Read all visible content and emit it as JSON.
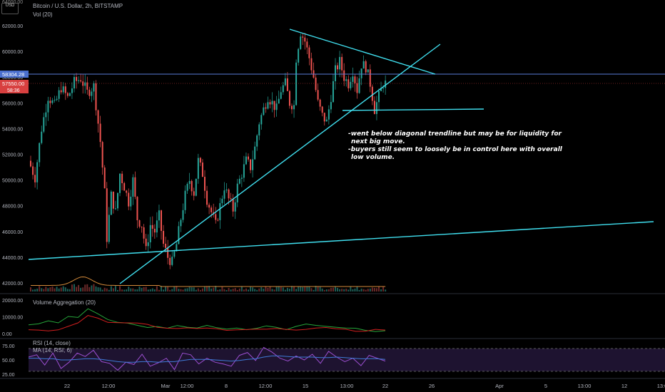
{
  "header": {
    "symbol_line": "Bitcoin / U.S. Dollar, 2h, BITSTAMP",
    "vol_label": "Vol (20)",
    "currency_top": "64000.00",
    "currency_badge": "USD"
  },
  "chart_data": [
    {
      "type": "candlestick",
      "title": "Bitcoin / U.S. Dollar, 2h, BITSTAMP",
      "y_ticks": [
        "62000.00",
        "60000.00",
        "58000.00",
        "56000.00",
        "54000.00",
        "52000.00",
        "50000.00",
        "48000.00",
        "46000.00",
        "44000.00",
        "42000.00"
      ],
      "ylim": [
        41500,
        64000
      ],
      "x_ticks": [
        "22",
        "12:00",
        "Mar",
        "12:00",
        "8",
        "12:00",
        "15",
        "13:00",
        "22",
        "26",
        "Apr",
        "5",
        "13:00",
        "12",
        "13:0"
      ],
      "price_path": [
        [
          0,
          51500
        ],
        [
          3,
          50200
        ],
        [
          6,
          54000
        ],
        [
          9,
          56500
        ],
        [
          12,
          55800
        ],
        [
          15,
          57200
        ],
        [
          18,
          56400
        ],
        [
          21,
          57600
        ],
        [
          24,
          57900
        ],
        [
          27,
          56800
        ],
        [
          30,
          57300
        ],
        [
          33,
          53000
        ],
        [
          35,
          49000
        ],
        [
          36,
          45500
        ],
        [
          38,
          48800
        ],
        [
          40,
          47500
        ],
        [
          42,
          50500
        ],
        [
          44,
          49500
        ],
        [
          46,
          48300
        ],
        [
          48,
          50000
        ],
        [
          50,
          47000
        ],
        [
          52,
          46500
        ],
        [
          54,
          44500
        ],
        [
          56,
          46500
        ],
        [
          58,
          46000
        ],
        [
          60,
          47200
        ],
        [
          62,
          45000
        ],
        [
          64,
          44000
        ],
        [
          66,
          43600
        ],
        [
          68,
          45000
        ],
        [
          70,
          47000
        ],
        [
          72,
          48800
        ],
        [
          74,
          50000
        ],
        [
          76,
          49000
        ],
        [
          78,
          51500
        ],
        [
          80,
          50500
        ],
        [
          82,
          48500
        ],
        [
          84,
          47500
        ],
        [
          86,
          46500
        ],
        [
          88,
          48000
        ],
        [
          90,
          49500
        ],
        [
          92,
          48500
        ],
        [
          94,
          47700
        ],
        [
          96,
          49500
        ],
        [
          98,
          50500
        ],
        [
          100,
          51500
        ],
        [
          102,
          51000
        ],
        [
          104,
          52500
        ],
        [
          106,
          54500
        ],
        [
          108,
          55500
        ],
        [
          110,
          56500
        ],
        [
          112,
          56000
        ],
        [
          114,
          55500
        ],
        [
          116,
          57000
        ],
        [
          118,
          57500
        ],
        [
          120,
          56000
        ],
        [
          122,
          55800
        ],
        [
          123,
          59500
        ],
        [
          125,
          61500
        ],
        [
          127,
          60800
        ],
        [
          129,
          59500
        ],
        [
          131,
          58000
        ],
        [
          133,
          56000
        ],
        [
          135,
          55000
        ],
        [
          137,
          54500
        ],
        [
          139,
          56500
        ],
        [
          141,
          58500
        ],
        [
          143,
          59200
        ],
        [
          145,
          58000
        ],
        [
          147,
          57500
        ],
        [
          149,
          58500
        ],
        [
          151,
          57000
        ],
        [
          153,
          59000
        ],
        [
          155,
          58800
        ],
        [
          157,
          57500
        ],
        [
          159,
          55500
        ],
        [
          161,
          56500
        ],
        [
          163,
          57500
        ]
      ]
    },
    {
      "type": "bar",
      "title": "Vol (20)",
      "note": "volume bars with moving average"
    },
    {
      "type": "line",
      "title": "Volume Aggregation (20)",
      "y_ticks": [
        "20000.00",
        "10000.00",
        "0.00"
      ],
      "ylim": [
        0,
        20000
      ],
      "series": [
        {
          "color": "#26a63a",
          "values": [
            5200,
            5800,
            7600,
            6400,
            10200,
            9600,
            14800,
            11800,
            8400,
            6700,
            6200,
            4900,
            3600,
            4200,
            3200,
            4800,
            3800,
            3300,
            4900,
            3500,
            2700,
            3300,
            2300,
            3100,
            4600,
            3700,
            2300,
            4300,
            5700,
            4900,
            4300,
            3800,
            3300,
            3200,
            1900,
            1200,
            1700
          ]
        },
        {
          "color": "#d11f1f",
          "values": [
            2300,
            2100,
            1600,
            2200,
            4300,
            6400,
            10800,
            9200,
            6700,
            6500,
            6400,
            6300,
            5500,
            3700,
            3200,
            3000,
            3400,
            3000,
            3300,
            2900,
            1900,
            2200,
            2400,
            2700,
            2600,
            3000,
            2500,
            2100,
            2500,
            3300,
            3600,
            2900,
            2600,
            1300,
            1400,
            2500,
            2100
          ]
        }
      ]
    },
    {
      "type": "line",
      "title": "RSI (14, close)",
      "subtitle": "MA (14, RSI, 6)",
      "y_ticks": [
        "75.00",
        "50.00",
        "25.00"
      ],
      "ylim": [
        20,
        80
      ],
      "band": [
        30,
        70
      ],
      "series": [
        {
          "color": "#9c4fd1",
          "values": [
            55,
            59,
            41,
            62,
            35,
            46,
            62,
            56,
            67,
            47,
            44,
            32,
            46,
            42,
            60,
            39,
            45,
            53,
            33,
            62,
            59,
            43,
            53,
            46,
            43,
            39,
            58,
            63,
            49,
            72,
            64,
            53,
            48,
            57,
            50,
            60,
            44,
            65,
            55,
            47,
            53,
            40,
            58,
            53,
            48
          ]
        },
        {
          "color": "#3f7bd9",
          "values": [
            53,
            53,
            52,
            52,
            50,
            50,
            51,
            52,
            52,
            51,
            49,
            47,
            46,
            46,
            47,
            47,
            46,
            47,
            47,
            49,
            51,
            51,
            51,
            50,
            49,
            48,
            49,
            51,
            52,
            55,
            57,
            57,
            56,
            55,
            55,
            55,
            54,
            54,
            55,
            54,
            53,
            52,
            52,
            52,
            51
          ]
        }
      ]
    }
  ],
  "price_labels": {
    "line_price": "58304.28",
    "current_price": "57550.00",
    "countdown": "58:36"
  },
  "panes": {
    "vol_agg_label": "Volume Aggregation (20)",
    "rsi_label": "RSI (14, close)",
    "ma_label": "MA (14, RSI, 6)"
  },
  "annotation": {
    "line1": "-went below diagonal trendline but may be for liquidity for",
    "line2": "next big move.",
    "line3": "-buyers still seem to loosely be in control here with overall",
    "line4": "low volume."
  },
  "colors": {
    "bull": "#26a69a",
    "bear": "#ef5350",
    "trendline": "#40e0f0",
    "hline": "#5a7bd8",
    "price_label": "#d84040"
  }
}
